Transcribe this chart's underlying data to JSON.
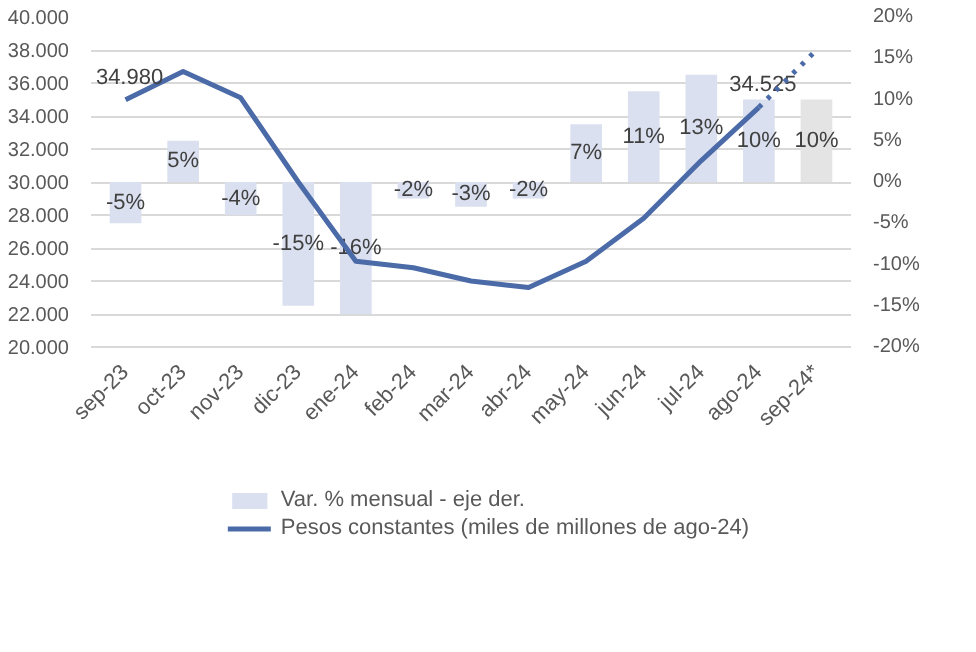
{
  "chart_data": {
    "type": "line",
    "categories": [
      "sep-23",
      "oct-23",
      "nov-23",
      "dic-23",
      "ene-24",
      "feb-24",
      "mar-24",
      "abr-24",
      "may-24",
      "jun-24",
      "jul-24",
      "ago-24",
      "sep-24*"
    ],
    "series": [
      {
        "name": "Var. % mensual - eje der.",
        "type": "bar",
        "axis": "y2",
        "color": "#dae0ef",
        "colors": [
          "#dae0ef",
          "#dae0ef",
          "#dae0ef",
          "#dae0ef",
          "#dae0ef",
          "#dae0ef",
          "#dae0ef",
          "#dae0ef",
          "#dae0ef",
          "#dae0ef",
          "#dae0ef",
          "#dae0ef",
          "#e4e4e4"
        ],
        "values": [
          -5,
          5,
          -4,
          -15,
          -16,
          -2,
          -3,
          -2,
          7,
          11,
          13,
          10,
          10
        ],
        "value_labels": [
          "-5%",
          "5%",
          "-4%",
          "-15%",
          "-16%",
          "-2%",
          "-3%",
          "-2%",
          "7%",
          "11%",
          "13%",
          "10%",
          "10%"
        ]
      },
      {
        "name": "Pesos constantes (miles de millones de ago-24)",
        "color": "#4a6aa8",
        "line_style": "solid",
        "values": [
          34980,
          36700,
          35100,
          30000,
          25200,
          24800,
          24000,
          23600,
          25200,
          27800,
          31300,
          34525,
          null
        ],
        "value_labels": [
          "34.980",
          null,
          null,
          null,
          null,
          null,
          null,
          null,
          null,
          null,
          null,
          "34.525",
          null
        ]
      },
      {
        "color": "#4a6aa8",
        "line_style": "dotted",
        "values": [
          null,
          null,
          null,
          null,
          null,
          null,
          null,
          null,
          null,
          null,
          null,
          34525,
          38000
        ]
      }
    ],
    "ylim": [
      20000,
      40000
    ],
    "yticks": [
      {
        "value": 20000,
        "label": "20.000"
      },
      {
        "value": 22000,
        "label": "22.000"
      },
      {
        "value": 24000,
        "label": "24.000"
      },
      {
        "value": 26000,
        "label": "26.000"
      },
      {
        "value": 28000,
        "label": "28.000"
      },
      {
        "value": 30000,
        "label": "30.000"
      },
      {
        "value": 32000,
        "label": "32.000"
      },
      {
        "value": 34000,
        "label": "34.000"
      },
      {
        "value": 36000,
        "label": "36.000"
      },
      {
        "value": 38000,
        "label": "38.000"
      },
      {
        "value": 40000,
        "label": "40.000"
      }
    ],
    "y2lim": [
      -20,
      20
    ],
    "y2ticks": [
      {
        "value": -20,
        "label": "-20%"
      },
      {
        "value": -15,
        "label": "-15%"
      },
      {
        "value": -10,
        "label": "-10%"
      },
      {
        "value": -5,
        "label": "-5%"
      },
      {
        "value": 0,
        "label": "0%"
      },
      {
        "value": 5,
        "label": "5%"
      },
      {
        "value": 10,
        "label": "10%"
      },
      {
        "value": 15,
        "label": "15%"
      },
      {
        "value": 20,
        "label": "20%"
      }
    ],
    "grid": "y",
    "legend": "bottom",
    "marker": "none"
  }
}
